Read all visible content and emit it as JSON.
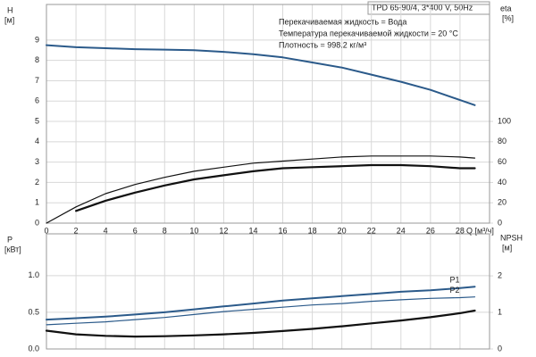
{
  "header": "TPD 65-90/4, 3*400 V, 50Hz",
  "chart_data": [
    {
      "type": "line",
      "x_label": "Q [м³/ч]",
      "y_label": "H",
      "y_unit": "[м]",
      "y2_label": "eta",
      "y2_unit": "[%]",
      "annotations": [
        "Перекачиваемая жидкость = Вода",
        "Температура перекачиваемой жидкости = 20 °C",
        "Плотность = 998.2 кг/м³"
      ],
      "x": [
        0,
        2,
        4,
        6,
        8,
        10,
        12,
        14,
        16,
        18,
        20,
        22,
        24,
        26,
        28,
        29
      ],
      "xlim": [
        0,
        30
      ],
      "xticks": [
        0,
        2,
        4,
        6,
        8,
        10,
        12,
        14,
        16,
        18,
        20,
        22,
        24,
        26,
        28
      ],
      "ylim": [
        0,
        10.75
      ],
      "yticks": [
        0,
        1,
        2,
        3,
        4,
        5,
        6,
        7,
        8,
        9
      ],
      "y2lim": [
        0,
        215
      ],
      "y2ticks": [
        0,
        20,
        40,
        60,
        80,
        100
      ],
      "grid": true,
      "series": [
        {
          "color": "#2b5a8a",
          "width": 2,
          "values": [
            8.75,
            8.65,
            8.6,
            8.55,
            8.53,
            8.5,
            8.42,
            8.3,
            8.15,
            7.9,
            7.65,
            7.3,
            6.95,
            6.55,
            6.05,
            5.8
          ]
        },
        {
          "color": "#111111",
          "width": 1.2,
          "axis": "y2",
          "values": [
            0,
            16,
            29,
            38,
            45,
            51,
            55,
            59,
            61,
            63,
            65,
            66,
            66,
            66,
            65,
            64
          ]
        },
        {
          "color": "#111111",
          "width": 2.2,
          "axis": "y2",
          "values": [
            null,
            12,
            22,
            30,
            37,
            43,
            47,
            51,
            54,
            55,
            56,
            57,
            57,
            56,
            54,
            54
          ]
        }
      ]
    },
    {
      "type": "line",
      "y_label": "P",
      "y_unit": "[кВт]",
      "y2_label": "NPSH",
      "y2_unit": "[м]",
      "x": [
        0,
        2,
        4,
        6,
        8,
        10,
        12,
        14,
        16,
        18,
        20,
        22,
        24,
        26,
        28,
        29
      ],
      "xlim": [
        0,
        30
      ],
      "xticks": [
        0,
        2,
        4,
        6,
        8,
        10,
        12,
        14,
        16,
        18,
        20,
        22,
        24,
        26,
        28
      ],
      "ylim": [
        0,
        1.57
      ],
      "yticks": [
        {
          "value": 0,
          "label": "0.0"
        },
        0.5,
        {
          "value": 1,
          "label": "1.0"
        }
      ],
      "y2lim": [
        0,
        3.15
      ],
      "y2ticks": [
        0,
        1,
        2
      ],
      "grid": true,
      "series": [
        {
          "name": "P1",
          "color": "#2b5a8a",
          "width": 2,
          "values": [
            0.4,
            0.42,
            0.44,
            0.47,
            0.5,
            0.54,
            0.58,
            0.62,
            0.66,
            0.69,
            0.72,
            0.75,
            0.78,
            0.8,
            0.83,
            0.85
          ]
        },
        {
          "name": "P2",
          "color": "#2b5a8a",
          "width": 1.2,
          "values": [
            0.33,
            0.35,
            0.37,
            0.4,
            0.43,
            0.47,
            0.51,
            0.54,
            0.57,
            0.6,
            0.62,
            0.65,
            0.67,
            0.69,
            0.7,
            0.71
          ]
        },
        {
          "color": "#111111",
          "width": 2.2,
          "axis": "y2",
          "values": [
            0.5,
            0.4,
            0.36,
            0.34,
            0.35,
            0.37,
            0.4,
            0.44,
            0.49,
            0.55,
            0.62,
            0.7,
            0.78,
            0.87,
            0.98,
            1.05
          ]
        }
      ]
    }
  ]
}
